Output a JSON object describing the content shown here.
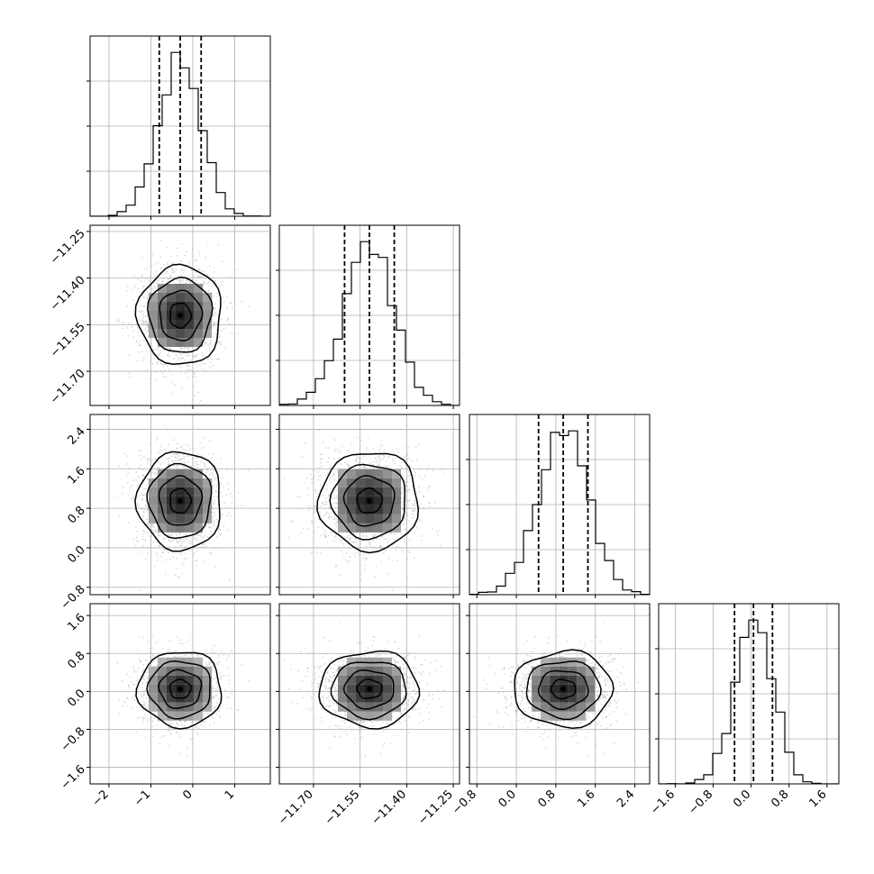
{
  "chart_data": {
    "type": "scatter",
    "subtype": "corner",
    "title": "",
    "grid": true,
    "params": [
      {
        "name": "",
        "mean": -0.3,
        "std": 0.5,
        "ticks": [
          -2,
          -1,
          0,
          1
        ],
        "ticklabels": [
          "−2",
          "−1",
          "0",
          "1"
        ],
        "range": [
          -2.45,
          1.85
        ],
        "quantiles": [
          -0.8,
          -0.3,
          0.2
        ]
      },
      {
        "name": "",
        "mean": -11.52,
        "std": 0.08,
        "ticks": [
          -11.7,
          -11.55,
          -11.4,
          -11.25
        ],
        "ticklabels": [
          "−11.70",
          "−11.55",
          "−11.40",
          "−11.25"
        ],
        "range": [
          -11.81,
          -11.23
        ],
        "quantiles": [
          -11.6,
          -11.52,
          -11.44
        ]
      },
      {
        "name": "",
        "mean": 0.95,
        "std": 0.5,
        "ticks": [
          -0.8,
          0.0,
          0.8,
          1.6,
          2.4
        ],
        "ticklabels": [
          "−0.8",
          "0.0",
          "0.8",
          "1.6",
          "2.4"
        ],
        "range": [
          -0.95,
          2.7
        ],
        "quantiles": [
          0.45,
          0.95,
          1.45
        ]
      },
      {
        "name": "",
        "mean": 0.05,
        "std": 0.4,
        "ticks": [
          -1.6,
          -0.8,
          0.0,
          0.8,
          1.6
        ],
        "ticklabels": [
          "−1.6",
          "−0.8",
          "0.0",
          "0.8",
          "1.6"
        ],
        "range": [
          -1.95,
          1.85
        ],
        "quantiles": [
          -0.35,
          0.05,
          0.45
        ]
      }
    ],
    "bins": 20,
    "n_samples": 3000,
    "contour_sigma_levels": [
      0.5,
      1.0,
      1.5,
      2.0
    ]
  }
}
